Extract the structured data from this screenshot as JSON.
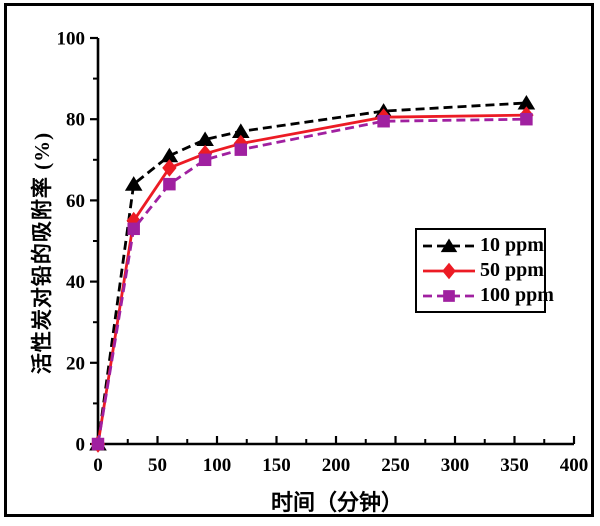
{
  "figure": {
    "background": "#ffffff",
    "border_color": "#000000"
  },
  "chart_data": {
    "type": "line",
    "title": "",
    "xlabel": "时间（分钟）",
    "ylabel": "活性炭对铅的吸附率 (%)",
    "xlim": [
      0,
      400
    ],
    "ylim": [
      0,
      100
    ],
    "x_major_ticks": [
      0,
      50,
      100,
      150,
      200,
      250,
      300,
      350,
      400
    ],
    "x_minor_tick_step": 25,
    "y_major_ticks": [
      0,
      20,
      40,
      60,
      80,
      100
    ],
    "y_minor_tick_step": 10,
    "grid": false,
    "legend_position": "inside-middle-right",
    "x": [
      0,
      30,
      60,
      90,
      120,
      240,
      360
    ],
    "series": [
      {
        "name": "10 ppm",
        "color": "#000000",
        "marker": "triangle",
        "line_style": "dashed",
        "values": [
          0,
          64,
          71,
          75,
          77,
          82,
          84
        ]
      },
      {
        "name": "50 ppm",
        "color": "#EC1B24",
        "marker": "diamond",
        "line_style": "solid",
        "values": [
          0,
          55,
          68,
          71.5,
          74,
          80.5,
          81
        ]
      },
      {
        "name": "100 ppm",
        "color": "#A020A0",
        "marker": "square",
        "line_style": "dashed",
        "values": [
          0,
          53,
          64,
          70,
          72.5,
          79.5,
          80
        ]
      }
    ]
  }
}
